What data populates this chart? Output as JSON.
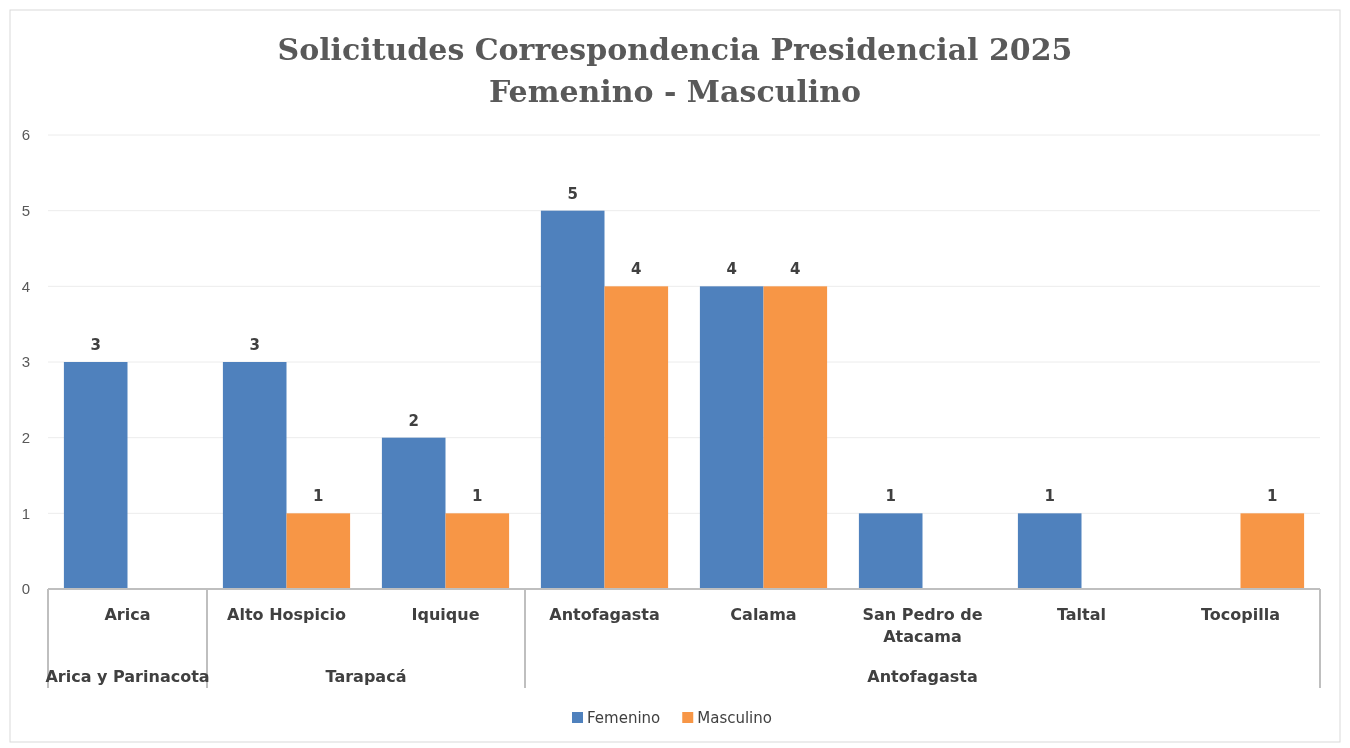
{
  "chart_data": {
    "type": "bar",
    "title": "Solicitudes Correspondencia Presidencial 2025\nFemenino  - Masculino",
    "categories": [
      "Arica",
      "Alto Hospicio",
      "Iquique",
      "Antofagasta",
      "Calama",
      "San Pedro de Atacama",
      "Taltal",
      "Tocopilla"
    ],
    "series": [
      {
        "name": "Femenino",
        "color": "#4f81bd",
        "values": [
          3,
          3,
          2,
          5,
          4,
          1,
          1,
          null
        ]
      },
      {
        "name": "Masculino",
        "color": "#f79646",
        "values": [
          null,
          1,
          1,
          4,
          4,
          null,
          null,
          1
        ]
      }
    ],
    "annotations": [
      "Arica y Parinacota",
      "Tarapacá",
      "Antofagasta"
    ],
    "ylim": [
      0,
      6
    ],
    "yticks": [
      0,
      1,
      2,
      3,
      4,
      5,
      6
    ],
    "grid": "y",
    "legend": "bottom",
    "data_labels": true
  }
}
